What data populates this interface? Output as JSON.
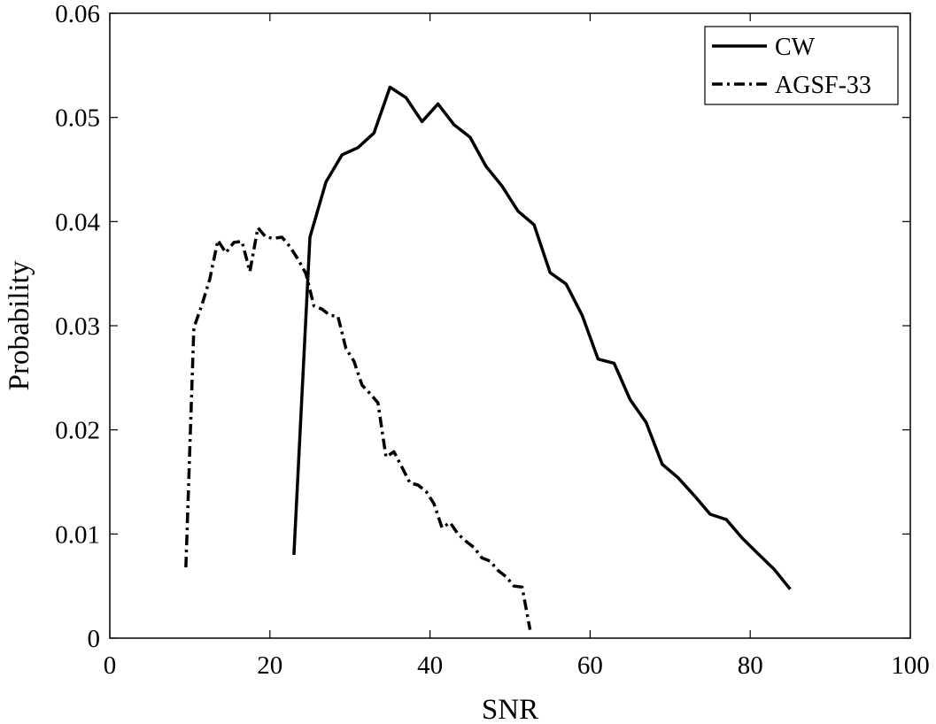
{
  "chart_data": {
    "type": "line",
    "title": "",
    "xlabel": "SNR",
    "ylabel": "Probability",
    "xlim": [
      0,
      100
    ],
    "ylim": [
      0,
      0.06
    ],
    "xticks": [
      0,
      20,
      40,
      60,
      80,
      100
    ],
    "yticks": [
      0,
      0.01,
      0.02,
      0.03,
      0.04,
      0.05,
      0.06
    ],
    "xtick_labels": [
      "0",
      "20",
      "40",
      "60",
      "80",
      "100"
    ],
    "ytick_labels": [
      "0",
      "0.01",
      "0.02",
      "0.03",
      "0.04",
      "0.05",
      "0.06"
    ],
    "grid": false,
    "legend_position": "top-right",
    "series": [
      {
        "name": "CW",
        "line_style": "solid",
        "color": "#000000",
        "x": [
          23,
          25,
          27,
          29,
          31,
          33,
          35,
          37,
          39,
          41,
          43,
          45,
          47,
          49,
          51,
          53,
          55,
          57,
          59,
          61,
          63,
          65,
          67,
          69,
          71,
          73,
          75,
          77,
          79,
          81,
          83,
          85
        ],
        "y": [
          0.008,
          0.0385,
          0.0438,
          0.0464,
          0.0471,
          0.0485,
          0.0529,
          0.0519,
          0.0496,
          0.0513,
          0.0493,
          0.0481,
          0.0453,
          0.0434,
          0.041,
          0.0397,
          0.0351,
          0.034,
          0.031,
          0.0268,
          0.0264,
          0.0229,
          0.0207,
          0.0167,
          0.0154,
          0.0137,
          0.0119,
          0.0114,
          0.0096,
          0.0081,
          0.0066,
          0.0047
        ]
      },
      {
        "name": "AGSF-33",
        "line_style": "dash-dot",
        "color": "#000000",
        "x": [
          9.5,
          10.5,
          11.5,
          12.5,
          13.5,
          14.5,
          15.5,
          16.5,
          17.5,
          18.5,
          19.5,
          20.5,
          21.5,
          22.5,
          23.5,
          24.5,
          25.5,
          26.5,
          27.5,
          28.5,
          29.5,
          30.5,
          31.5,
          32.5,
          33.5,
          34.5,
          35.5,
          36.5,
          37.5,
          38.5,
          39.5,
          40.5,
          41.5,
          42.5,
          43.5,
          44.5,
          45.5,
          46.5,
          47.5,
          48.5,
          49.5,
          50.5,
          51.5,
          52.5
        ],
        "y": [
          0.0068,
          0.0298,
          0.032,
          0.0345,
          0.0382,
          0.037,
          0.038,
          0.0381,
          0.0352,
          0.0394,
          0.0385,
          0.0384,
          0.0385,
          0.0376,
          0.0364,
          0.035,
          0.0319,
          0.0316,
          0.031,
          0.0309,
          0.0278,
          0.0266,
          0.0243,
          0.0235,
          0.0226,
          0.0174,
          0.0179,
          0.0164,
          0.0149,
          0.0147,
          0.0141,
          0.0129,
          0.0106,
          0.0111,
          0.01,
          0.0093,
          0.0087,
          0.0077,
          0.0074,
          0.0065,
          0.0059,
          0.005,
          0.0049,
          0.0008
        ]
      }
    ]
  }
}
